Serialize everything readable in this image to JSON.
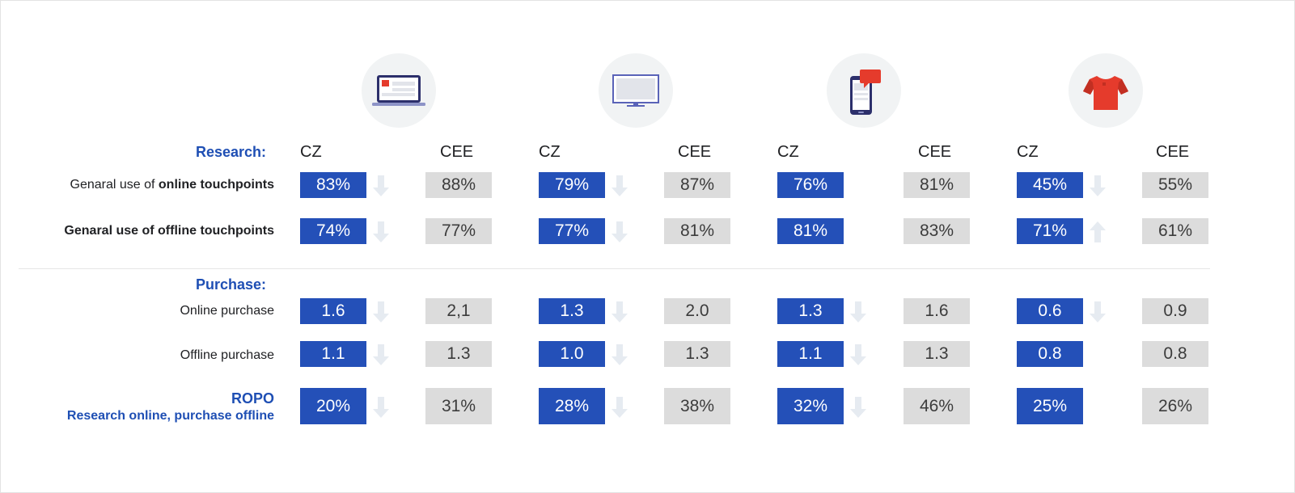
{
  "chart_data": {
    "type": "table",
    "groups": [
      {
        "icon": "laptop-icon"
      },
      {
        "icon": "monitor-icon"
      },
      {
        "icon": "smartphone-icon"
      },
      {
        "icon": "tshirt-icon"
      }
    ],
    "column_labels": {
      "cz": "CZ",
      "cee": "CEE"
    },
    "sections": {
      "research": "Research:",
      "purchase": "Purchase:"
    },
    "rows": [
      {
        "label_prefix": "Genaral use of ",
        "label_bold": "online touchpoints",
        "cz": [
          "83%",
          "79%",
          "76%",
          "45%"
        ],
        "cee": [
          "88%",
          "87%",
          "81%",
          "55%"
        ],
        "trend": [
          "down",
          "down",
          "none",
          "down"
        ]
      },
      {
        "label_prefix": "",
        "label_bold": "Genaral use of offline touchpoints",
        "cz": [
          "74%",
          "77%",
          "81%",
          "71%"
        ],
        "cee": [
          "77%",
          "81%",
          "83%",
          "61%"
        ],
        "trend": [
          "down",
          "down",
          "none",
          "up"
        ]
      },
      {
        "label": "Online purchase",
        "cz": [
          "1.6",
          "1.3",
          "1.3",
          "0.6"
        ],
        "cee": [
          "2,1",
          "2.0",
          "1.6",
          "0.9"
        ],
        "trend": [
          "down",
          "down",
          "down",
          "down"
        ]
      },
      {
        "label": "Offline purchase",
        "cz": [
          "1.1",
          "1.0",
          "1.1",
          "0.8"
        ],
        "cee": [
          "1.3",
          "1.3",
          "1.3",
          "0.8"
        ],
        "trend": [
          "down",
          "down",
          "down",
          "none"
        ]
      },
      {
        "label": "ROPO",
        "sublabel": "Research online, purchase offline",
        "cz": [
          "20%",
          "28%",
          "32%",
          "25%"
        ],
        "cee": [
          "31%",
          "38%",
          "46%",
          "26%"
        ],
        "trend": [
          "down",
          "down",
          "down",
          "none"
        ]
      }
    ]
  },
  "colors": {
    "cz_box": "#2450b8",
    "cee_box": "#dcdcdc",
    "section_title": "#1f4fb4",
    "trend_arrow": "#e6ebf1"
  }
}
